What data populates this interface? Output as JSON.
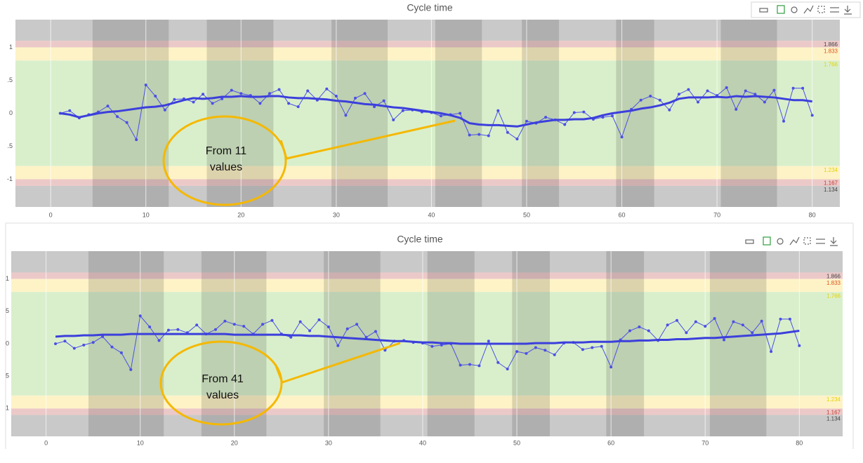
{
  "chart_data": [
    {
      "type": "line",
      "title": "Cycle time",
      "annotation": [
        "From 11",
        "values"
      ],
      "xlim": [
        -3.7,
        82.9
      ],
      "xticks": [
        0,
        10,
        20,
        30,
        40,
        50,
        60,
        70,
        80
      ],
      "ylim": [
        -1.42,
        1.42
      ],
      "yticks": [
        1,
        {
          "value": 0.5,
          "label": ".5"
        },
        0,
        {
          "value": -0.5,
          "label": ".5"
        },
        -1
      ],
      "zones": [
        {
          "from": 1.1,
          "to": 1.42,
          "color": "#c9c9c9"
        },
        {
          "from": 1.0,
          "to": 1.1,
          "color": "#ecc9c9"
        },
        {
          "from": 0.8,
          "to": 1.0,
          "color": "#fdf3c7"
        },
        {
          "from": -0.8,
          "to": 0.8,
          "color": "#d9efcc"
        },
        {
          "from": -1.0,
          "to": -0.8,
          "color": "#fdf3c7"
        },
        {
          "from": -1.1,
          "to": -1.0,
          "color": "#ecc9c9"
        },
        {
          "from": -1.42,
          "to": -1.1,
          "color": "#c9c9c9"
        }
      ],
      "limits": [
        {
          "value": 1.1,
          "label": "1.866",
          "color": "#444444"
        },
        {
          "value": 1.0,
          "label": "1.833",
          "color": "#e0531b"
        },
        {
          "value": 0.8,
          "label": "1.766",
          "color": "#e6d100"
        },
        {
          "value": -0.8,
          "label": "1.234",
          "color": "#e6d100"
        },
        {
          "value": -1.0,
          "label": "1.167",
          "color": "#c0392b"
        },
        {
          "value": -1.1,
          "label": "1.134",
          "color": "#444444"
        }
      ],
      "shaded_ranges": [
        [
          4.4,
          12.4
        ],
        [
          16.4,
          23.4
        ],
        [
          29.5,
          35.4
        ],
        [
          40.4,
          45.3
        ],
        [
          49.5,
          53.4
        ],
        [
          59.4,
          63.4
        ],
        [
          70.4,
          76.3
        ]
      ],
      "x": [
        1,
        2,
        3,
        4,
        5,
        6,
        7,
        8,
        9,
        10,
        11,
        12,
        13,
        14,
        15,
        16,
        17,
        18,
        19,
        20,
        21,
        22,
        23,
        24,
        25,
        26,
        27,
        28,
        29,
        30,
        31,
        32,
        33,
        34,
        35,
        36,
        37,
        38,
        39,
        40,
        41,
        42,
        43,
        44,
        45,
        46,
        47,
        48,
        49,
        50,
        51,
        52,
        53,
        54,
        55,
        56,
        57,
        58,
        59,
        60,
        61,
        62,
        63,
        64,
        65,
        66,
        67,
        68,
        69,
        70,
        71,
        72,
        73,
        74,
        75,
        76,
        77,
        78,
        79,
        80
      ],
      "series": [
        {
          "color": "#4b4fe6",
          "width": 1,
          "markers": true,
          "values": [
            0.0,
            0.04,
            -0.07,
            -0.02,
            0.02,
            0.11,
            -0.05,
            -0.14,
            -0.4,
            0.43,
            0.26,
            0.05,
            0.21,
            0.22,
            0.17,
            0.29,
            0.15,
            0.22,
            0.35,
            0.3,
            0.27,
            0.15,
            0.3,
            0.36,
            0.15,
            0.1,
            0.34,
            0.2,
            0.37,
            0.26,
            -0.03,
            0.23,
            0.3,
            0.1,
            0.19,
            -0.1,
            0.04,
            0.05,
            0.02,
            0.01,
            -0.04,
            -0.02,
            0.0,
            -0.33,
            -0.32,
            -0.34,
            0.04,
            -0.29,
            -0.39,
            -0.12,
            -0.15,
            -0.06,
            -0.1,
            -0.17,
            0.01,
            0.02,
            -0.09,
            -0.06,
            -0.04,
            -0.36,
            0.06,
            0.2,
            0.26,
            0.2,
            0.05,
            0.29,
            0.36,
            0.17,
            0.34,
            0.27,
            0.39,
            0.06,
            0.34,
            0.29,
            0.17,
            0.35,
            -0.12,
            0.38,
            0.38,
            -0.03
          ]
        },
        {
          "color": "#3c3fdc",
          "width": 3,
          "markers": false,
          "values": [
            0.0,
            -0.02,
            -0.06,
            -0.03,
            0.0,
            0.02,
            0.03,
            0.05,
            0.07,
            0.09,
            0.1,
            0.12,
            0.16,
            0.2,
            0.23,
            0.22,
            0.23,
            0.25,
            0.25,
            0.26,
            0.25,
            0.25,
            0.26,
            0.26,
            0.24,
            0.23,
            0.23,
            0.22,
            0.21,
            0.19,
            0.18,
            0.16,
            0.14,
            0.13,
            0.11,
            0.09,
            0.08,
            0.06,
            0.04,
            0.02,
            0.0,
            -0.03,
            -0.07,
            -0.15,
            -0.17,
            -0.18,
            -0.18,
            -0.19,
            -0.2,
            -0.17,
            -0.14,
            -0.12,
            -0.1,
            -0.1,
            -0.09,
            -0.09,
            -0.07,
            -0.03,
            0.0,
            0.02,
            0.04,
            0.07,
            0.09,
            0.12,
            0.16,
            0.22,
            0.24,
            0.24,
            0.24,
            0.25,
            0.24,
            0.26,
            0.25,
            0.26,
            0.25,
            0.24,
            0.22,
            0.2,
            0.2,
            0.18
          ]
        }
      ]
    },
    {
      "type": "line",
      "title": "Cycle time",
      "annotation": [
        "From 41",
        "values"
      ],
      "xlim": [
        -3.7,
        84.6
      ],
      "xticks": [
        0,
        10,
        20,
        30,
        40,
        50,
        60,
        70,
        80
      ],
      "ylim": [
        -1.43,
        1.43
      ],
      "yticks": [
        1,
        {
          "value": 0.5,
          "label": "5"
        },
        0,
        {
          "value": -0.5,
          "label": "5"
        },
        {
          "value": -1,
          "label": "1"
        }
      ],
      "zones": [
        {
          "from": 1.1,
          "to": 1.43,
          "color": "#c9c9c9"
        },
        {
          "from": 1.0,
          "to": 1.1,
          "color": "#ecc9c9"
        },
        {
          "from": 0.8,
          "to": 1.0,
          "color": "#fdf3c7"
        },
        {
          "from": -0.8,
          "to": 0.8,
          "color": "#d9efcc"
        },
        {
          "from": -1.0,
          "to": -0.8,
          "color": "#fdf3c7"
        },
        {
          "from": -1.1,
          "to": -1.0,
          "color": "#ecc9c9"
        },
        {
          "from": -1.43,
          "to": -1.1,
          "color": "#c9c9c9"
        }
      ],
      "limits": [
        {
          "value": 1.1,
          "label": "1.866",
          "color": "#444444"
        },
        {
          "value": 1.0,
          "label": "1.833",
          "color": "#e0531b"
        },
        {
          "value": 0.8,
          "label": "1.766",
          "color": "#e6d100"
        },
        {
          "value": -0.8,
          "label": "1.234",
          "color": "#e6d100"
        },
        {
          "value": -1.0,
          "label": "1.167",
          "color": "#c0392b"
        },
        {
          "value": -1.1,
          "label": "1.134",
          "color": "#444444"
        }
      ],
      "shaded_ranges": [
        [
          4.5,
          12.5
        ],
        [
          16.5,
          23.4
        ],
        [
          29.5,
          35.5
        ],
        [
          40.5,
          45.5
        ],
        [
          49.5,
          53.5
        ],
        [
          59.5,
          63.5
        ],
        [
          70.5,
          76.5
        ]
      ],
      "x": [
        1,
        2,
        3,
        4,
        5,
        6,
        7,
        8,
        9,
        10,
        11,
        12,
        13,
        14,
        15,
        16,
        17,
        18,
        19,
        20,
        21,
        22,
        23,
        24,
        25,
        26,
        27,
        28,
        29,
        30,
        31,
        32,
        33,
        34,
        35,
        36,
        37,
        38,
        39,
        40,
        41,
        42,
        43,
        44,
        45,
        46,
        47,
        48,
        49,
        50,
        51,
        52,
        53,
        54,
        55,
        56,
        57,
        58,
        59,
        60,
        61,
        62,
        63,
        64,
        65,
        66,
        67,
        68,
        69,
        70,
        71,
        72,
        73,
        74,
        75,
        76,
        77,
        78,
        79,
        80
      ],
      "series": [
        {
          "color": "#4b4fe6",
          "width": 1,
          "markers": true,
          "values": [
            0.0,
            0.04,
            -0.07,
            -0.02,
            0.02,
            0.11,
            -0.05,
            -0.14,
            -0.4,
            0.43,
            0.26,
            0.05,
            0.21,
            0.22,
            0.17,
            0.29,
            0.15,
            0.22,
            0.35,
            0.3,
            0.27,
            0.15,
            0.3,
            0.36,
            0.15,
            0.1,
            0.34,
            0.2,
            0.37,
            0.26,
            -0.03,
            0.23,
            0.3,
            0.1,
            0.19,
            -0.1,
            0.04,
            0.05,
            0.02,
            0.01,
            -0.04,
            -0.02,
            0.0,
            -0.33,
            -0.32,
            -0.34,
            0.04,
            -0.29,
            -0.39,
            -0.12,
            -0.15,
            -0.06,
            -0.1,
            -0.17,
            0.01,
            0.02,
            -0.09,
            -0.06,
            -0.04,
            -0.36,
            0.06,
            0.2,
            0.26,
            0.2,
            0.05,
            0.29,
            0.36,
            0.17,
            0.34,
            0.27,
            0.39,
            0.06,
            0.34,
            0.29,
            0.17,
            0.35,
            -0.12,
            0.38,
            0.38,
            -0.03
          ]
        },
        {
          "color": "#3c3fdc",
          "width": 3,
          "markers": false,
          "values": [
            0.11,
            0.12,
            0.12,
            0.13,
            0.13,
            0.14,
            0.14,
            0.14,
            0.15,
            0.15,
            0.15,
            0.15,
            0.15,
            0.15,
            0.15,
            0.15,
            0.15,
            0.15,
            0.15,
            0.14,
            0.14,
            0.14,
            0.14,
            0.14,
            0.14,
            0.13,
            0.13,
            0.12,
            0.12,
            0.11,
            0.1,
            0.09,
            0.08,
            0.07,
            0.06,
            0.05,
            0.04,
            0.04,
            0.03,
            0.02,
            0.02,
            0.01,
            0.01,
            0.0,
            0.0,
            0.0,
            0.0,
            0.0,
            0.0,
            0.0,
            0.0,
            0.01,
            0.01,
            0.01,
            0.02,
            0.02,
            0.02,
            0.03,
            0.03,
            0.03,
            0.04,
            0.04,
            0.05,
            0.05,
            0.06,
            0.06,
            0.07,
            0.07,
            0.08,
            0.09,
            0.09,
            0.1,
            0.11,
            0.12,
            0.13,
            0.14,
            0.15,
            0.16,
            0.18,
            0.2
          ]
        }
      ]
    }
  ]
}
